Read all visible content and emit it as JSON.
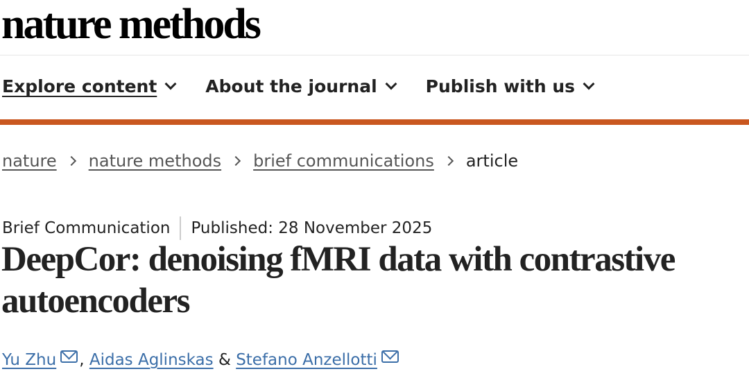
{
  "header": {
    "logo": "nature methods"
  },
  "nav": {
    "items": [
      {
        "label": "Explore content"
      },
      {
        "label": "About the journal"
      },
      {
        "label": "Publish with us"
      }
    ]
  },
  "breadcrumb": {
    "items": [
      "nature",
      "nature methods",
      "brief communications"
    ],
    "current": "article"
  },
  "article": {
    "type": "Brief Communication",
    "published": "Published: 28 November 2025",
    "title": "DeepCor: denoising fMRI data with contrastive autoencoders",
    "authors": [
      "Yu Zhu",
      "Aidas Aglinskas",
      "Stefano Anzellotti"
    ],
    "separator_comma": ",",
    "separator_amp": "&"
  },
  "colors": {
    "accent": "#c9571f",
    "link": "#3b6ea8"
  }
}
